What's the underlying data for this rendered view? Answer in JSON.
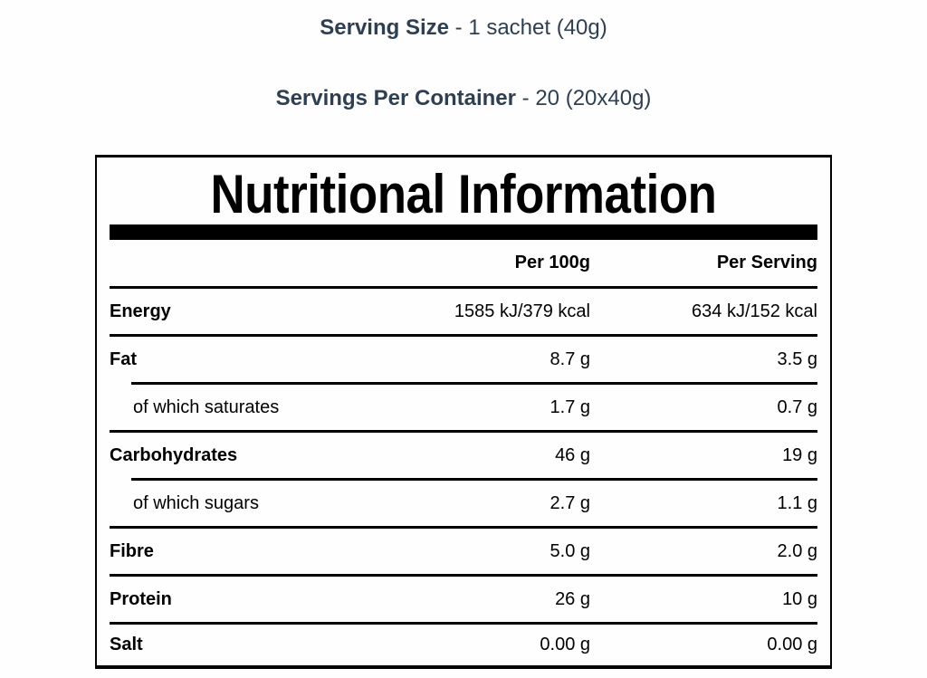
{
  "page": {
    "background_color": "#fefefe",
    "accent_text_color": "#2e3f51"
  },
  "header": {
    "serving_size_label": "Serving Size",
    "serving_size_value": "- 1 sachet (40g)",
    "servings_per_container_label": "Servings Per Container",
    "servings_per_container_value": "- 20 (20x40g)"
  },
  "table": {
    "title": "Nutritional Information",
    "columns": {
      "per_100g": "Per 100g",
      "per_serving": "Per Serving"
    },
    "rows": [
      {
        "label": "Energy",
        "per_100g": "1585 kJ/379 kcal",
        "per_serving": "634 kJ/152 kcal",
        "sub": false
      },
      {
        "label": "Fat",
        "per_100g": "8.7 g",
        "per_serving": "3.5 g",
        "sub": false
      },
      {
        "label": "of which saturates",
        "per_100g": "1.7 g",
        "per_serving": "0.7 g",
        "sub": true
      },
      {
        "label": "Carbohydrates",
        "per_100g": "46 g",
        "per_serving": "19 g",
        "sub": false
      },
      {
        "label": "of which sugars",
        "per_100g": "2.7 g",
        "per_serving": "1.1 g",
        "sub": true
      },
      {
        "label": "Fibre",
        "per_100g": "5.0 g",
        "per_serving": "2.0 g",
        "sub": false
      },
      {
        "label": "Protein",
        "per_100g": "26 g",
        "per_serving": "10 g",
        "sub": false
      },
      {
        "label": "Salt",
        "per_100g": "0.00 g",
        "per_serving": "0.00 g",
        "sub": false
      }
    ]
  }
}
